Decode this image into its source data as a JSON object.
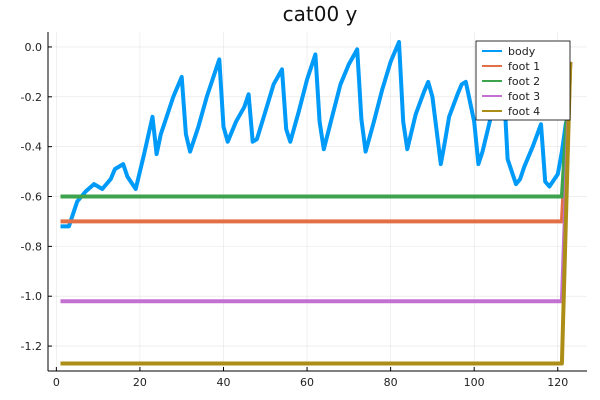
{
  "chart_data": {
    "type": "line",
    "title": "cat00 y",
    "xlabel": "",
    "ylabel": "",
    "xlim": [
      -2,
      127
    ],
    "ylim": [
      -1.3,
      0.06
    ],
    "xticks": [
      0,
      20,
      40,
      60,
      80,
      100,
      120
    ],
    "yticks": [
      0.0,
      -0.2,
      -0.4,
      -0.6,
      -0.8,
      -1.0,
      -1.2
    ],
    "ytick_labels": [
      "0.0",
      "-0.2",
      "-0.4",
      "-0.6",
      "-0.8",
      "-1.0",
      "-1.2"
    ],
    "grid": true,
    "legend_position": "top-right",
    "series": [
      {
        "name": "body",
        "color": "#009af9",
        "x": [
          1,
          3,
          5,
          7,
          9,
          11,
          13,
          14,
          16,
          17,
          19,
          21,
          23,
          24,
          25,
          26,
          28,
          30,
          31,
          32,
          34,
          36,
          38,
          39,
          40,
          41,
          43,
          45,
          46,
          47,
          48,
          50,
          52,
          54,
          55,
          56,
          58,
          60,
          62,
          63,
          64,
          66,
          68,
          70,
          72,
          73,
          74,
          76,
          78,
          80,
          82,
          83,
          84,
          86,
          88,
          89,
          90,
          92,
          93,
          94,
          96,
          97,
          98,
          100,
          101,
          102,
          104,
          106,
          107,
          108,
          110,
          111,
          112,
          114,
          116,
          117,
          118,
          120,
          121,
          122
        ],
        "y": [
          -0.72,
          -0.72,
          -0.62,
          -0.58,
          -0.55,
          -0.57,
          -0.53,
          -0.49,
          -0.47,
          -0.52,
          -0.57,
          -0.43,
          -0.28,
          -0.43,
          -0.35,
          -0.3,
          -0.2,
          -0.12,
          -0.35,
          -0.42,
          -0.32,
          -0.2,
          -0.1,
          -0.05,
          -0.32,
          -0.38,
          -0.3,
          -0.24,
          -0.19,
          -0.38,
          -0.37,
          -0.26,
          -0.15,
          -0.09,
          -0.33,
          -0.38,
          -0.26,
          -0.13,
          -0.03,
          -0.3,
          -0.41,
          -0.28,
          -0.15,
          -0.07,
          -0.01,
          -0.29,
          -0.42,
          -0.3,
          -0.17,
          -0.06,
          0.02,
          -0.3,
          -0.41,
          -0.27,
          -0.18,
          -0.14,
          -0.2,
          -0.47,
          -0.38,
          -0.28,
          -0.19,
          -0.15,
          -0.14,
          -0.3,
          -0.47,
          -0.42,
          -0.28,
          -0.14,
          -0.13,
          -0.45,
          -0.55,
          -0.53,
          -0.48,
          -0.4,
          -0.31,
          -0.54,
          -0.56,
          -0.51,
          -0.42,
          -0.3
        ]
      },
      {
        "name": "foot 1",
        "color": "#e26f46",
        "x": [
          1,
          121,
          123
        ],
        "y": [
          -0.7,
          -0.7,
          -0.06
        ]
      },
      {
        "name": "foot 2",
        "color": "#3da44d",
        "x": [
          1,
          121,
          123
        ],
        "y": [
          -0.6,
          -0.6,
          -0.06
        ]
      },
      {
        "name": "foot 3",
        "color": "#c271d2",
        "x": [
          1,
          121,
          123
        ],
        "y": [
          -1.02,
          -1.02,
          -0.06
        ]
      },
      {
        "name": "foot 4",
        "color": "#ac8d18",
        "x": [
          1,
          121,
          123
        ],
        "y": [
          -1.27,
          -1.27,
          -0.06
        ]
      }
    ]
  }
}
